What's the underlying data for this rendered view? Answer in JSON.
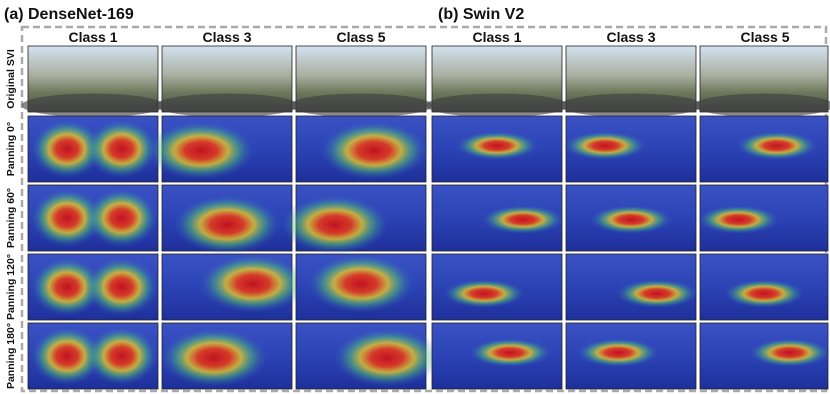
{
  "panels": [
    {
      "title": "(a) DenseNet-169",
      "columns": [
        "Class 1",
        "Class 3",
        "Class 5"
      ]
    },
    {
      "title": "(b) Swin V2",
      "columns": [
        "Class 1",
        "Class 3",
        "Class 5"
      ]
    }
  ],
  "rows": [
    "Original SVI",
    "Panning 0°",
    "Panning 60°",
    "Panning 120°",
    "Panning 180°"
  ]
}
